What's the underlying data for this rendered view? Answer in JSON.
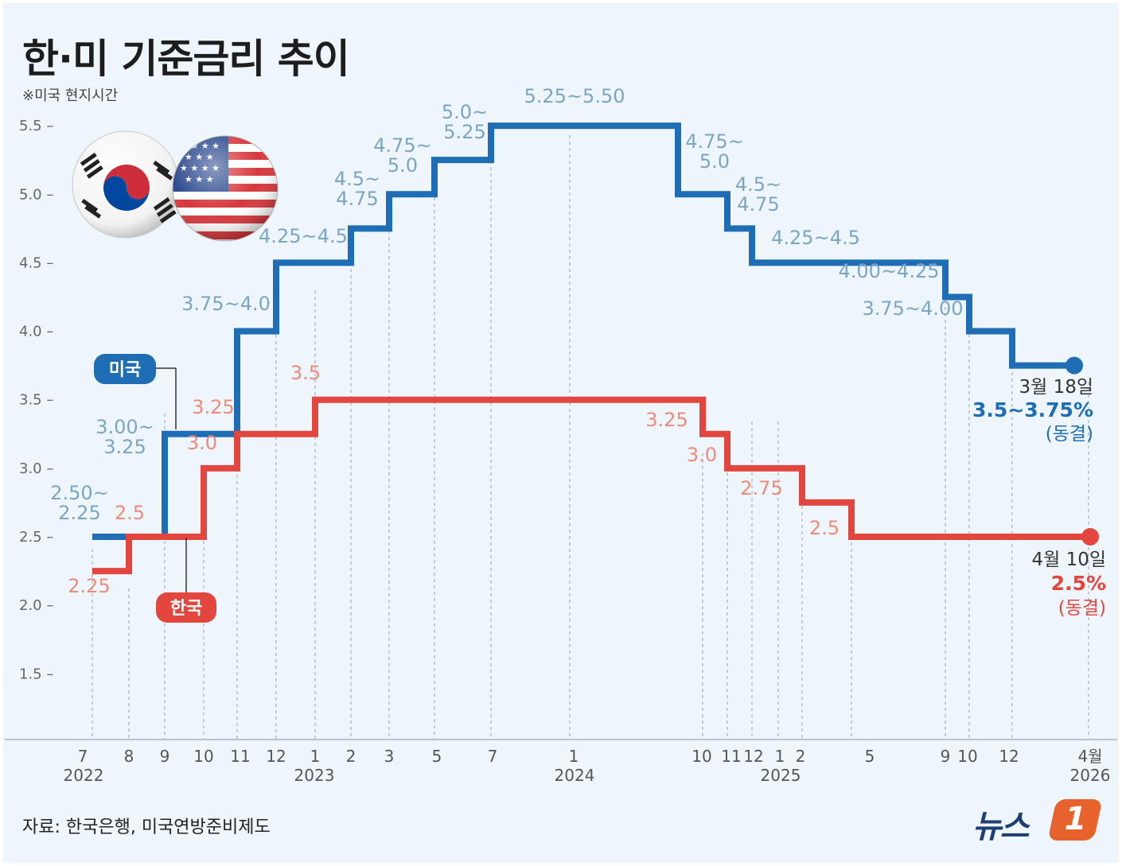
{
  "chart_data": {
    "type": "line",
    "title": "한·미 기준금리 추이",
    "note": "※미국 현지시간",
    "source": "자료: 한국은행, 미국연방준비제도",
    "logo": "뉴스1",
    "ylim": [
      1.25,
      5.75
    ],
    "yticks": [
      "5.5",
      "5.0",
      "4.5",
      "4.0",
      "3.5",
      "3.0",
      "2.5",
      "2.0",
      "1.5"
    ],
    "grid": true,
    "x_ticks": [
      {
        "month": "7",
        "year": "2022"
      },
      {
        "month": "8"
      },
      {
        "month": "9"
      },
      {
        "month": "10"
      },
      {
        "month": "11"
      },
      {
        "month": "12"
      },
      {
        "month": "1",
        "year": "2023"
      },
      {
        "month": "2"
      },
      {
        "month": "3"
      },
      {
        "month": "5"
      },
      {
        "month": "7"
      },
      {
        "month": "1",
        "year": "2024"
      },
      {
        "month": "10"
      },
      {
        "month": "11"
      },
      {
        "month": "12"
      },
      {
        "month": "1",
        "year": "2025"
      },
      {
        "month": "2"
      },
      {
        "month": "5"
      },
      {
        "month": "9"
      },
      {
        "month": "10"
      },
      {
        "month": "12"
      },
      {
        "month": "4월",
        "year": "2026"
      }
    ],
    "series": [
      {
        "name": "미국",
        "color": "#1f6db4",
        "label_color": "#7ba6c2",
        "steps": [
          {
            "x": "2022-07",
            "y": 2.5,
            "label": [
              "2.50~",
              "2.25"
            ]
          },
          {
            "x": "2022-09",
            "y": 3.25,
            "label": [
              "3.00~",
              "3.25"
            ]
          },
          {
            "x": "2022-11",
            "y": 4.0,
            "label": [
              "3.75~4.0"
            ]
          },
          {
            "x": "2022-12",
            "y": 4.5,
            "label": [
              "4.25~4.5"
            ]
          },
          {
            "x": "2023-02",
            "y": 4.75,
            "label": [
              "4.5~",
              "4.75"
            ]
          },
          {
            "x": "2023-03",
            "y": 5.0,
            "label": [
              "4.75~",
              "5.0"
            ]
          },
          {
            "x": "2023-05",
            "y": 5.25,
            "label": [
              "5.0~",
              "5.25"
            ]
          },
          {
            "x": "2023-07",
            "y": 5.5,
            "label": [
              "5.25~5.50"
            ]
          },
          {
            "x": "2024-09",
            "y": 5.0,
            "label": [
              "4.75~",
              "5.0"
            ]
          },
          {
            "x": "2024-11",
            "y": 4.75,
            "label": [
              "4.5~",
              "4.75"
            ]
          },
          {
            "x": "2024-12",
            "y": 4.5,
            "label": [
              "4.25~4.5"
            ]
          },
          {
            "x": "2025-09",
            "y": 4.25,
            "label": [
              "4.00~4.25"
            ]
          },
          {
            "x": "2025-10",
            "y": 4.0,
            "label": [
              "3.75~4.00"
            ]
          },
          {
            "x": "2025-12",
            "y": 3.75,
            "label": []
          }
        ],
        "end": {
          "x": "2026-03",
          "y": 3.75
        },
        "final_note": {
          "date": "3월 18일",
          "value": "3.5~3.75%",
          "status": "(동결)"
        }
      },
      {
        "name": "한국",
        "color": "#e2463f",
        "label_color": "#ec8b7c",
        "steps": [
          {
            "x": "2022-07",
            "y": 2.25,
            "label": [
              "2.25"
            ]
          },
          {
            "x": "2022-08",
            "y": 2.5,
            "label": [
              "2.5"
            ]
          },
          {
            "x": "2022-10",
            "y": 3.0,
            "label": [
              "3.0"
            ]
          },
          {
            "x": "2022-11",
            "y": 3.25,
            "label": [
              "3.25"
            ]
          },
          {
            "x": "2023-01",
            "y": 3.5,
            "label": [
              "3.5"
            ]
          },
          {
            "x": "2024-10",
            "y": 3.25,
            "label": [
              "3.25"
            ]
          },
          {
            "x": "2024-11",
            "y": 3.0,
            "label": [
              "3.0"
            ]
          },
          {
            "x": "2025-02",
            "y": 2.75,
            "label": [
              "2.75"
            ]
          },
          {
            "x": "2025-05",
            "y": 2.5,
            "label": [
              "2.5"
            ]
          }
        ],
        "end": {
          "x": "2026-04",
          "y": 2.5
        },
        "final_note": {
          "date": "4월 10일",
          "value": "2.5%",
          "status": "(동결)"
        }
      }
    ]
  }
}
